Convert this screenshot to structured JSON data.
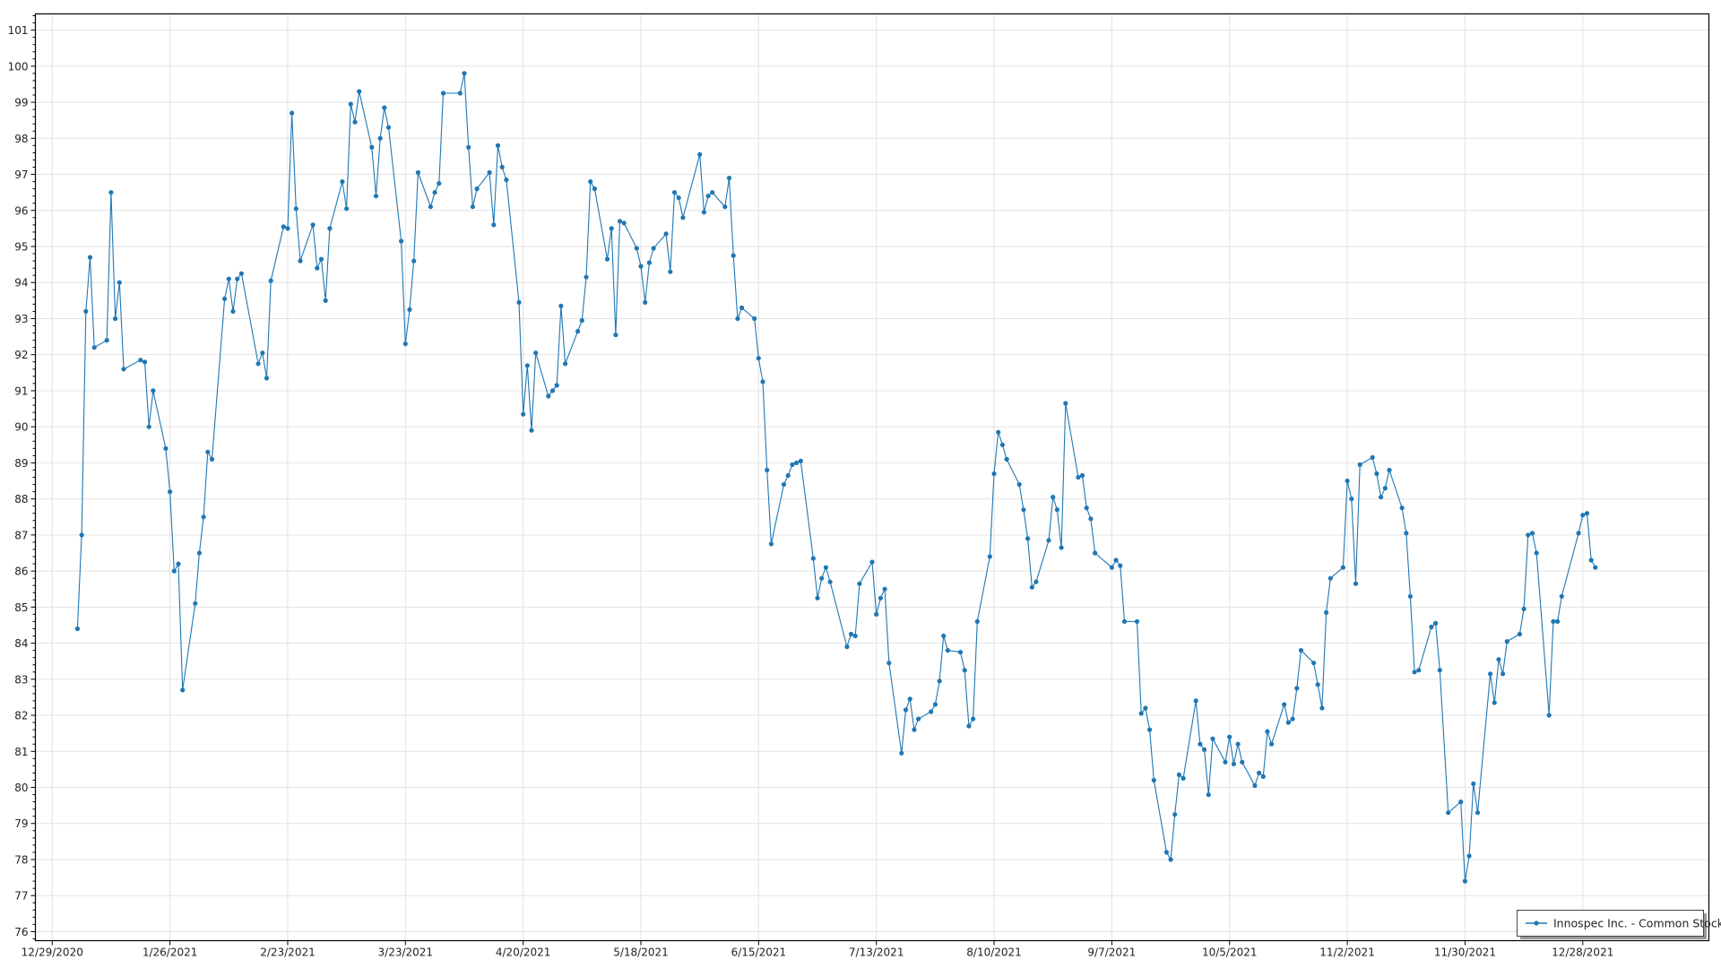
{
  "chart_data": {
    "type": "line",
    "title": "",
    "xlabel": "",
    "ylabel": "",
    "ylim": [
      75.75,
      101.45
    ],
    "xlim": [
      "12/25/2020",
      "1/27/2022"
    ],
    "grid": true,
    "legend_position": "bottom-right",
    "x_tick_labels": [
      "12/29/2020",
      "1/26/2021",
      "2/23/2021",
      "3/23/2021",
      "4/20/2021",
      "5/18/2021",
      "6/15/2021",
      "7/13/2021",
      "8/10/2021",
      "9/7/2021",
      "10/5/2021",
      "11/2/2021",
      "11/30/2021",
      "12/28/2021"
    ],
    "y_tick_labels": [
      "76",
      "77",
      "78",
      "79",
      "80",
      "81",
      "82",
      "83",
      "84",
      "85",
      "86",
      "87",
      "88",
      "89",
      "90",
      "91",
      "92",
      "93",
      "94",
      "95",
      "96",
      "97",
      "98",
      "99",
      "100",
      "101"
    ],
    "series": [
      {
        "name": "Innospec Inc. - Common Stock",
        "color": "#1f77b4",
        "marker": "circle",
        "x": [
          "1/4/2021",
          "1/5/2021",
          "1/6/2021",
          "1/7/2021",
          "1/8/2021",
          "1/11/2021",
          "1/12/2021",
          "1/13/2021",
          "1/14/2021",
          "1/15/2021",
          "1/19/2021",
          "1/20/2021",
          "1/21/2021",
          "1/22/2021",
          "1/25/2021",
          "1/26/2021",
          "1/27/2021",
          "1/28/2021",
          "1/29/2021",
          "2/1/2021",
          "2/2/2021",
          "2/3/2021",
          "2/4/2021",
          "2/5/2021",
          "2/8/2021",
          "2/9/2021",
          "2/10/2021",
          "2/11/2021",
          "2/12/2021",
          "2/16/2021",
          "2/17/2021",
          "2/18/2021",
          "2/19/2021",
          "2/22/2021",
          "2/23/2021",
          "2/24/2021",
          "2/25/2021",
          "2/26/2021",
          "3/1/2021",
          "3/2/2021",
          "3/3/2021",
          "3/4/2021",
          "3/5/2021",
          "3/8/2021",
          "3/9/2021",
          "3/10/2021",
          "3/11/2021",
          "3/12/2021",
          "3/15/2021",
          "3/16/2021",
          "3/17/2021",
          "3/18/2021",
          "3/19/2021",
          "3/22/2021",
          "3/23/2021",
          "3/24/2021",
          "3/25/2021",
          "3/26/2021",
          "3/29/2021",
          "3/30/2021",
          "3/31/2021",
          "4/1/2021",
          "4/5/2021",
          "4/6/2021",
          "4/7/2021",
          "4/8/2021",
          "4/9/2021",
          "4/12/2021",
          "4/13/2021",
          "4/14/2021",
          "4/15/2021",
          "4/16/2021",
          "4/19/2021",
          "4/20/2021",
          "4/21/2021",
          "4/22/2021",
          "4/23/2021",
          "4/26/2021",
          "4/27/2021",
          "4/28/2021",
          "4/29/2021",
          "4/30/2021",
          "5/3/2021",
          "5/4/2021",
          "5/5/2021",
          "5/6/2021",
          "5/7/2021",
          "5/10/2021",
          "5/11/2021",
          "5/12/2021",
          "5/13/2021",
          "5/14/2021",
          "5/17/2021",
          "5/18/2021",
          "5/19/2021",
          "5/20/2021",
          "5/21/2021",
          "5/24/2021",
          "5/25/2021",
          "5/26/2021",
          "5/27/2021",
          "5/28/2021",
          "6/1/2021",
          "6/2/2021",
          "6/3/2021",
          "6/4/2021",
          "6/7/2021",
          "6/8/2021",
          "6/9/2021",
          "6/10/2021",
          "6/11/2021",
          "6/14/2021",
          "6/15/2021",
          "6/16/2021",
          "6/17/2021",
          "6/18/2021",
          "6/21/2021",
          "6/22/2021",
          "6/23/2021",
          "6/24/2021",
          "6/25/2021",
          "6/28/2021",
          "6/29/2021",
          "6/30/2021",
          "7/1/2021",
          "7/2/2021",
          "7/6/2021",
          "7/7/2021",
          "7/8/2021",
          "7/9/2021",
          "7/12/2021",
          "7/13/2021",
          "7/14/2021",
          "7/15/2021",
          "7/16/2021",
          "7/19/2021",
          "7/20/2021",
          "7/21/2021",
          "7/22/2021",
          "7/23/2021",
          "7/26/2021",
          "7/27/2021",
          "7/28/2021",
          "7/29/2021",
          "7/30/2021",
          "8/2/2021",
          "8/3/2021",
          "8/4/2021",
          "8/5/2021",
          "8/6/2021",
          "8/9/2021",
          "8/10/2021",
          "8/11/2021",
          "8/12/2021",
          "8/13/2021",
          "8/16/2021",
          "8/17/2021",
          "8/18/2021",
          "8/19/2021",
          "8/20/2021",
          "8/23/2021",
          "8/24/2021",
          "8/25/2021",
          "8/26/2021",
          "8/27/2021",
          "8/30/2021",
          "8/31/2021",
          "9/1/2021",
          "9/2/2021",
          "9/3/2021",
          "9/7/2021",
          "9/8/2021",
          "9/9/2021",
          "9/10/2021",
          "9/13/2021",
          "9/14/2021",
          "9/15/2021",
          "9/16/2021",
          "9/17/2021",
          "9/20/2021",
          "9/21/2021",
          "9/22/2021",
          "9/23/2021",
          "9/24/2021",
          "9/27/2021",
          "9/28/2021",
          "9/29/2021",
          "9/30/2021",
          "10/1/2021",
          "10/4/2021",
          "10/5/2021",
          "10/6/2021",
          "10/7/2021",
          "10/8/2021",
          "10/11/2021",
          "10/12/2021",
          "10/13/2021",
          "10/14/2021",
          "10/15/2021",
          "10/18/2021",
          "10/19/2021",
          "10/20/2021",
          "10/21/2021",
          "10/22/2021",
          "10/25/2021",
          "10/26/2021",
          "10/27/2021",
          "10/28/2021",
          "10/29/2021",
          "11/1/2021",
          "11/2/2021",
          "11/3/2021",
          "11/4/2021",
          "11/5/2021",
          "11/8/2021",
          "11/9/2021",
          "11/10/2021",
          "11/11/2021",
          "11/12/2021",
          "11/15/2021",
          "11/16/2021",
          "11/17/2021",
          "11/18/2021",
          "11/19/2021",
          "11/22/2021",
          "11/23/2021",
          "11/24/2021",
          "11/26/2021",
          "11/29/2021",
          "11/30/2021",
          "12/1/2021",
          "12/2/2021",
          "12/3/2021",
          "12/6/2021",
          "12/7/2021",
          "12/8/2021",
          "12/9/2021",
          "12/10/2021",
          "12/13/2021",
          "12/14/2021",
          "12/15/2021",
          "12/16/2021",
          "12/17/2021",
          "12/20/2021",
          "12/21/2021",
          "12/22/2021",
          "12/23/2021",
          "12/27/2021",
          "12/28/2021",
          "12/29/2021",
          "12/30/2021",
          "12/31/2021"
        ],
        "y": [
          84.4,
          87.0,
          93.2,
          94.7,
          92.2,
          92.4,
          96.5,
          93.0,
          94.0,
          91.6,
          91.85,
          91.8,
          90.0,
          91.0,
          89.4,
          88.2,
          86.0,
          86.2,
          82.7,
          85.1,
          86.5,
          87.5,
          89.3,
          89.1,
          93.55,
          94.1,
          93.2,
          94.1,
          94.25,
          91.75,
          92.05,
          91.35,
          94.05,
          95.55,
          95.5,
          98.7,
          96.05,
          94.6,
          95.6,
          94.4,
          94.65,
          93.5,
          95.5,
          96.8,
          96.05,
          98.95,
          98.45,
          99.3,
          97.75,
          96.4,
          98.0,
          98.85,
          98.3,
          95.15,
          92.3,
          93.25,
          94.6,
          97.05,
          96.1,
          96.5,
          96.75,
          99.25,
          99.25,
          99.8,
          97.75,
          96.1,
          96.6,
          97.05,
          95.6,
          97.8,
          97.2,
          96.85,
          93.45,
          90.35,
          91.7,
          89.9,
          92.05,
          90.85,
          91.0,
          91.15,
          93.35,
          91.75,
          92.65,
          92.95,
          94.15,
          96.8,
          96.6,
          94.65,
          95.5,
          92.55,
          95.7,
          95.65,
          94.95,
          94.45,
          93.45,
          94.55,
          94.95,
          95.35,
          94.3,
          96.5,
          96.35,
          95.8,
          97.55,
          95.95,
          96.4,
          96.5,
          96.1,
          96.9,
          94.75,
          93.0,
          93.3,
          93.0,
          91.9,
          91.25,
          88.8,
          86.75,
          88.4,
          88.65,
          88.95,
          89.0,
          89.05,
          86.35,
          85.25,
          85.8,
          86.1,
          85.7,
          83.9,
          84.25,
          84.2,
          85.65,
          86.25,
          84.8,
          85.25,
          85.5,
          83.45,
          80.95,
          82.15,
          82.45,
          81.6,
          81.9,
          82.1,
          82.3,
          82.95,
          84.2,
          83.8,
          83.75,
          83.25,
          81.7,
          81.9,
          84.6,
          86.4,
          88.7,
          89.85,
          89.5,
          89.1,
          88.4,
          87.7,
          86.9,
          85.55,
          85.7,
          86.85,
          88.05,
          87.7,
          86.65,
          90.65,
          88.6,
          88.65,
          87.75,
          87.45,
          86.5,
          86.1,
          86.3,
          86.15,
          84.6,
          84.6,
          82.05,
          82.2,
          81.6,
          80.2,
          78.2,
          78.0,
          79.25,
          80.35,
          80.25,
          82.4,
          81.2,
          81.05,
          79.8,
          81.35,
          80.7,
          81.4,
          80.65,
          81.2,
          80.7,
          80.05,
          80.4,
          80.3,
          81.55,
          81.2,
          82.3,
          81.8,
          81.9,
          82.75,
          83.8,
          83.45,
          82.85,
          82.2,
          84.85,
          85.8,
          86.1,
          88.5,
          88.0,
          85.65,
          88.95,
          89.15,
          88.7,
          88.05,
          88.3,
          88.8,
          87.75,
          87.05,
          85.3,
          83.2,
          83.25,
          84.45,
          84.55,
          83.25,
          79.3,
          79.6,
          77.4,
          78.1,
          80.1,
          79.3,
          83.15,
          82.35,
          83.55,
          83.15,
          84.05,
          84.25,
          84.95,
          87.0,
          87.05,
          86.5,
          82.0,
          84.6,
          84.6,
          85.3,
          87.05,
          87.55,
          87.6,
          86.3,
          86.1
        ]
      }
    ]
  }
}
